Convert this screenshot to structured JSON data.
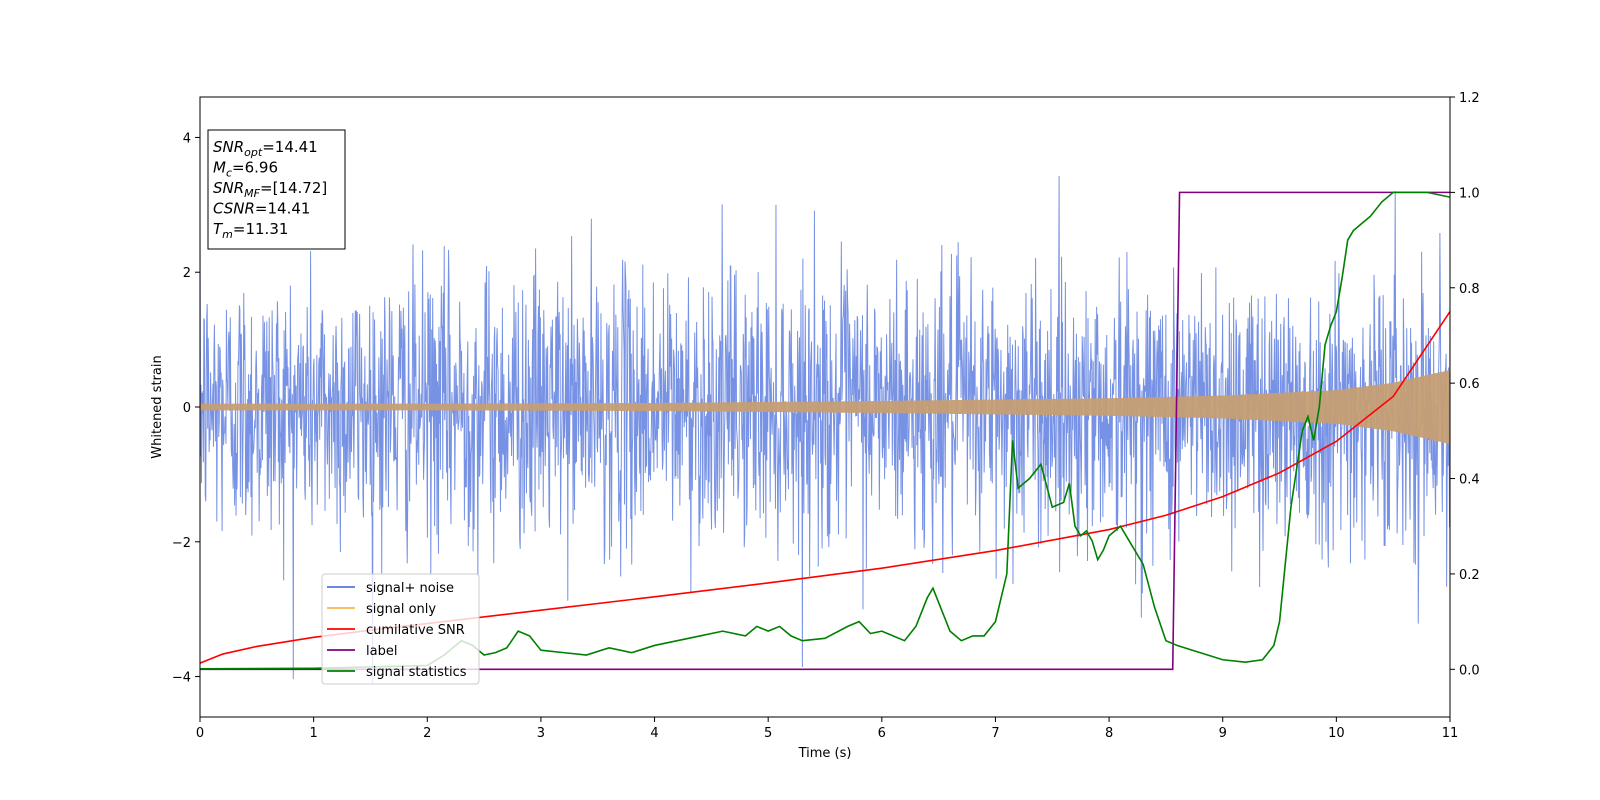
{
  "chart_data": {
    "type": "line",
    "xlabel": "Time (s)",
    "ylabel": "Whitened strain",
    "xlim": [
      0,
      11
    ],
    "ylim": [
      -4.6,
      4.6
    ],
    "ylim_right": [
      -0.1,
      1.2
    ],
    "xticks": [
      "0",
      "1",
      "2",
      "3",
      "4",
      "5",
      "6",
      "7",
      "8",
      "9",
      "10",
      "11"
    ],
    "yticks_left": [
      "−4",
      "−2",
      "0",
      "2",
      "4"
    ],
    "yticks_right": [
      "0.0",
      "0.2",
      "0.4",
      "0.6",
      "0.8",
      "1.0",
      "1.2"
    ],
    "info_box": [
      {
        "main": "SNR",
        "sub": "opt",
        "value": "=14.41"
      },
      {
        "main": "M",
        "sub": "c",
        "value": "=6.96"
      },
      {
        "main": "SNR",
        "sub": "MF",
        "value": "=[14.72]"
      },
      {
        "main": "CSNR",
        "sub": "",
        "value": "=14.41"
      },
      {
        "main": "T",
        "sub": "m",
        "value": "=11.31"
      }
    ],
    "legend": {
      "placement": "lower-left",
      "items": [
        {
          "name": "signal+ noise",
          "color": "#5577dd"
        },
        {
          "name": "signal only",
          "color": "#f5b84e"
        },
        {
          "name": "cumilative SNR",
          "color": "#ff0000"
        },
        {
          "name": "label",
          "color": "#800080"
        },
        {
          "name": "signal statistics",
          "color": "#008000"
        }
      ]
    },
    "series": [
      {
        "name": "signal+ noise",
        "axis": "left",
        "color": "#5577dd",
        "description": "white Gaussian noise, sd≈1"
      },
      {
        "name": "signal only",
        "axis": "left",
        "color": "#f5b84e",
        "envelope": {
          "x": [
            0,
            2,
            4,
            6,
            8,
            9,
            10,
            10.5,
            11
          ],
          "amp": [
            0.05,
            0.05,
            0.06,
            0.09,
            0.13,
            0.17,
            0.25,
            0.36,
            0.55
          ]
        }
      },
      {
        "name": "cumilative SNR",
        "axis": "right",
        "color": "#ff0000",
        "x": [
          0,
          0.2,
          0.5,
          1,
          1.5,
          2,
          3,
          4,
          5,
          6,
          7,
          8,
          8.5,
          9,
          9.5,
          10,
          10.5,
          11
        ],
        "y": [
          0.013,
          0.032,
          0.048,
          0.067,
          0.082,
          0.096,
          0.124,
          0.152,
          0.181,
          0.212,
          0.249,
          0.293,
          0.323,
          0.362,
          0.412,
          0.478,
          0.572,
          0.75
        ]
      },
      {
        "name": "label",
        "axis": "right",
        "color": "#800080",
        "x": [
          0,
          8.56,
          8.62,
          11
        ],
        "y": [
          0,
          0,
          1,
          1
        ]
      },
      {
        "name": "signal statistics",
        "axis": "right",
        "color": "#008000",
        "x": [
          0,
          1,
          2,
          2.15,
          2.3,
          2.4,
          2.5,
          2.6,
          2.7,
          2.8,
          2.9,
          3.0,
          3.2,
          3.4,
          3.6,
          3.8,
          4.0,
          4.2,
          4.4,
          4.6,
          4.8,
          4.9,
          5.0,
          5.1,
          5.2,
          5.3,
          5.5,
          5.7,
          5.8,
          5.9,
          6.0,
          6.2,
          6.3,
          6.4,
          6.45,
          6.5,
          6.6,
          6.7,
          6.8,
          6.9,
          7.0,
          7.1,
          7.15,
          7.2,
          7.3,
          7.4,
          7.5,
          7.6,
          7.65,
          7.7,
          7.75,
          7.8,
          7.85,
          7.9,
          7.95,
          8.0,
          8.1,
          8.2,
          8.3,
          8.4,
          8.5,
          8.6,
          8.8,
          9.0,
          9.2,
          9.35,
          9.45,
          9.5,
          9.6,
          9.7,
          9.75,
          9.8,
          9.85,
          9.9,
          9.95,
          10.0,
          10.05,
          10.1,
          10.15,
          10.2,
          10.3,
          10.4,
          10.5,
          10.6,
          10.8,
          11
        ],
        "y": [
          0.001,
          0.002,
          0.008,
          0.03,
          0.06,
          0.05,
          0.03,
          0.035,
          0.045,
          0.08,
          0.07,
          0.04,
          0.035,
          0.03,
          0.045,
          0.035,
          0.05,
          0.06,
          0.07,
          0.08,
          0.07,
          0.09,
          0.08,
          0.09,
          0.07,
          0.06,
          0.065,
          0.09,
          0.1,
          0.075,
          0.08,
          0.06,
          0.09,
          0.15,
          0.17,
          0.14,
          0.08,
          0.06,
          0.07,
          0.07,
          0.1,
          0.2,
          0.48,
          0.38,
          0.4,
          0.43,
          0.34,
          0.35,
          0.39,
          0.3,
          0.28,
          0.29,
          0.27,
          0.23,
          0.25,
          0.28,
          0.3,
          0.26,
          0.22,
          0.13,
          0.06,
          0.05,
          0.035,
          0.02,
          0.015,
          0.02,
          0.05,
          0.1,
          0.34,
          0.5,
          0.53,
          0.48,
          0.55,
          0.68,
          0.72,
          0.75,
          0.82,
          0.9,
          0.92,
          0.93,
          0.95,
          0.98,
          1.0,
          1.0,
          1.0,
          0.99
        ]
      }
    ]
  }
}
